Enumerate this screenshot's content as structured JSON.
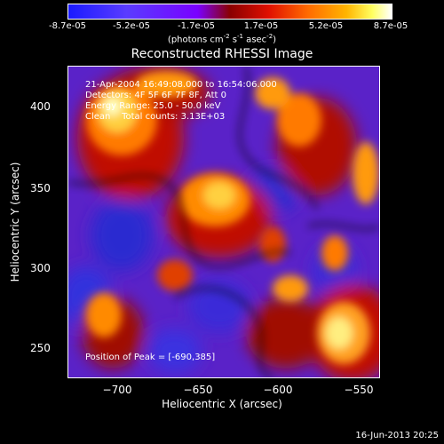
{
  "colorbar": {
    "ticks": [
      "-8.7e-05",
      "-5.2e-05",
      "-1.7e-05",
      "1.7e-05",
      "5.2e-05",
      "8.7e-05"
    ],
    "units": "(photons cm",
    "units_exp1": "-2",
    "units_mid": " s",
    "units_exp2": "-1",
    "units_tail": " asec",
    "units_exp3": "-2",
    "units_close": ")"
  },
  "title": "Reconstructed RHESSI Image",
  "info": {
    "line1": "21-Apr-2004 16:49:08.000 to 16:54:06.000",
    "line2": "Detectors: 4F 5F 6F 7F 8F, Att 0",
    "line3": "Energy Range: 25.0 - 50.0 keV",
    "line4": "Clean    Total counts: 3.13E+03",
    "peak": "Position of Peak = [-690,385]"
  },
  "axes": {
    "xlabel": "Heliocentric X (arcsec)",
    "ylabel": "Heliocentric Y (arcsec)",
    "xticks": [
      "−700",
      "−650",
      "−600",
      "−550"
    ],
    "yticks": [
      "400",
      "350",
      "300",
      "250"
    ]
  },
  "timestamp": "16-Jun-2013 20:25"
}
